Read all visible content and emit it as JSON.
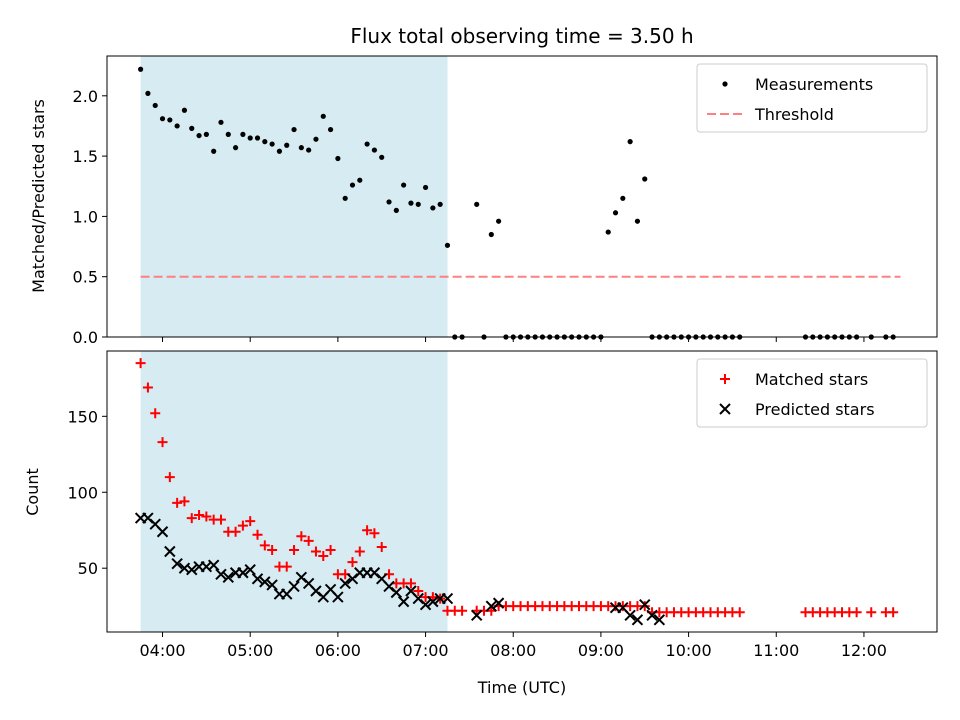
{
  "chart_data": [
    {
      "type": "scatter",
      "title": "Flux total observing time = 3.50 h",
      "xlabel": "",
      "ylabel": "Matched/Predicted stars",
      "xlim": [
        "03:22",
        "12:50"
      ],
      "ylim": [
        0,
        2.33
      ],
      "yticks": [
        0.0,
        0.5,
        1.0,
        1.5,
        2.0
      ],
      "ytick_labels": [
        "0.0",
        "0.5",
        "1.0",
        "1.5",
        "2.0"
      ],
      "grid": false,
      "legend_position": "top-right",
      "shaded_interval": {
        "start": "03:45",
        "end": "07:15",
        "color": "#add8e6"
      },
      "series": [
        {
          "name": "Measurements",
          "marker": "dot",
          "color": "#000000",
          "x": [
            "03:45",
            "03:50",
            "03:55",
            "04:00",
            "04:05",
            "04:10",
            "04:15",
            "04:20",
            "04:25",
            "04:30",
            "04:35",
            "04:40",
            "04:45",
            "04:50",
            "04:55",
            "05:00",
            "05:05",
            "05:10",
            "05:15",
            "05:20",
            "05:25",
            "05:30",
            "05:35",
            "05:40",
            "05:45",
            "05:50",
            "05:55",
            "06:00",
            "06:05",
            "06:10",
            "06:15",
            "06:20",
            "06:25",
            "06:30",
            "06:35",
            "06:40",
            "06:45",
            "06:50",
            "06:55",
            "07:00",
            "07:05",
            "07:10",
            "07:15",
            "07:20",
            "07:25",
            "07:35",
            "07:40",
            "07:45",
            "07:50",
            "07:55",
            "08:00",
            "08:05",
            "08:10",
            "08:15",
            "08:20",
            "08:25",
            "08:30",
            "08:35",
            "08:40",
            "08:45",
            "08:50",
            "08:55",
            "09:00",
            "09:05",
            "09:10",
            "09:15",
            "09:20",
            "09:25",
            "09:30",
            "09:35",
            "09:40",
            "09:45",
            "09:50",
            "09:55",
            "10:00",
            "10:05",
            "10:10",
            "10:15",
            "10:20",
            "10:25",
            "10:30",
            "10:35",
            "11:20",
            "11:25",
            "11:30",
            "11:35",
            "11:40",
            "11:45",
            "11:50",
            "11:55",
            "12:05",
            "12:15",
            "12:20"
          ],
          "y": [
            2.22,
            2.02,
            1.92,
            1.81,
            1.8,
            1.75,
            1.88,
            1.73,
            1.67,
            1.68,
            1.54,
            1.78,
            1.68,
            1.57,
            1.68,
            1.65,
            1.65,
            1.62,
            1.6,
            1.54,
            1.59,
            1.72,
            1.57,
            1.55,
            1.64,
            1.83,
            1.72,
            1.48,
            1.15,
            1.26,
            1.3,
            1.6,
            1.55,
            1.49,
            1.12,
            1.05,
            1.26,
            1.11,
            1.1,
            1.24,
            1.07,
            1.1,
            0.76,
            0,
            0,
            1.1,
            0,
            0.85,
            0.96,
            0,
            0,
            0,
            0,
            0,
            0,
            0,
            0,
            0,
            0,
            0,
            0,
            0,
            0,
            0.87,
            1.03,
            1.15,
            1.62,
            0.96,
            1.31,
            0,
            0,
            0,
            0,
            0,
            0,
            0,
            0,
            0,
            0,
            0,
            0,
            0,
            0,
            0,
            0,
            0,
            0,
            0,
            0,
            0,
            0,
            0,
            0
          ]
        },
        {
          "name": "Threshold",
          "style": "dashed",
          "color": "#ff8080",
          "x": [
            "03:45",
            "12:25"
          ],
          "y": [
            0.5,
            0.5
          ]
        }
      ]
    },
    {
      "type": "scatter",
      "title": "",
      "xlabel": "Time (UTC)",
      "ylabel": "Count",
      "xlim": [
        "03:22",
        "12:50"
      ],
      "ylim": [
        8,
        193
      ],
      "xticks": [
        "04:00",
        "05:00",
        "06:00",
        "07:00",
        "08:00",
        "09:00",
        "10:00",
        "11:00",
        "12:00"
      ],
      "yticks": [
        50,
        100,
        150
      ],
      "ytick_labels": [
        "50",
        "100",
        "150"
      ],
      "grid": false,
      "legend_position": "top-right",
      "shaded_interval": {
        "start": "03:45",
        "end": "07:15",
        "color": "#add8e6"
      },
      "series": [
        {
          "name": "Matched stars",
          "marker": "plus",
          "color": "#ff0000",
          "x": [
            "03:45",
            "03:50",
            "03:55",
            "04:00",
            "04:05",
            "04:10",
            "04:15",
            "04:20",
            "04:25",
            "04:30",
            "04:35",
            "04:40",
            "04:45",
            "04:50",
            "04:55",
            "05:00",
            "05:05",
            "05:10",
            "05:15",
            "05:20",
            "05:25",
            "05:30",
            "05:35",
            "05:40",
            "05:45",
            "05:50",
            "05:55",
            "06:00",
            "06:05",
            "06:10",
            "06:15",
            "06:20",
            "06:25",
            "06:30",
            "06:35",
            "06:40",
            "06:45",
            "06:50",
            "06:55",
            "07:00",
            "07:05",
            "07:10",
            "07:15",
            "07:20",
            "07:25",
            "07:35",
            "07:40",
            "07:45",
            "07:50",
            "07:55",
            "08:00",
            "08:05",
            "08:10",
            "08:15",
            "08:20",
            "08:25",
            "08:30",
            "08:35",
            "08:40",
            "08:45",
            "08:50",
            "08:55",
            "09:00",
            "09:05",
            "09:10",
            "09:15",
            "09:20",
            "09:25",
            "09:30",
            "09:35",
            "09:40",
            "09:45",
            "09:50",
            "09:55",
            "10:00",
            "10:05",
            "10:10",
            "10:15",
            "10:20",
            "10:25",
            "10:30",
            "10:35",
            "11:20",
            "11:25",
            "11:30",
            "11:35",
            "11:40",
            "11:45",
            "11:50",
            "11:55",
            "12:05",
            "12:15",
            "12:20"
          ],
          "y": [
            185,
            169,
            152,
            133,
            110,
            93,
            94,
            83,
            85,
            84,
            82,
            82,
            74,
            74,
            78,
            81,
            72,
            65,
            62,
            51,
            51,
            62,
            71,
            68,
            61,
            58,
            62,
            46,
            46,
            54,
            61,
            75,
            73,
            64,
            46,
            40,
            40,
            40,
            35,
            31,
            31,
            30,
            22,
            22,
            22,
            22,
            22,
            22,
            25,
            25,
            25,
            25,
            25,
            25,
            25,
            25,
            25,
            25,
            25,
            25,
            25,
            25,
            25,
            25,
            25,
            25,
            25,
            25,
            25,
            21,
            21,
            21,
            21,
            21,
            21,
            21,
            21,
            21,
            21,
            21,
            21,
            21,
            21,
            21,
            21,
            21,
            21,
            21,
            21,
            21,
            21,
            21,
            21
          ]
        },
        {
          "name": "Predicted stars",
          "marker": "x",
          "color": "#000000",
          "x": [
            "03:45",
            "03:50",
            "03:55",
            "04:00",
            "04:05",
            "04:10",
            "04:15",
            "04:20",
            "04:25",
            "04:30",
            "04:35",
            "04:40",
            "04:45",
            "04:50",
            "04:55",
            "05:00",
            "05:05",
            "05:10",
            "05:15",
            "05:20",
            "05:25",
            "05:30",
            "05:35",
            "05:40",
            "05:45",
            "05:50",
            "05:55",
            "06:00",
            "06:05",
            "06:10",
            "06:15",
            "06:20",
            "06:25",
            "06:30",
            "06:35",
            "06:40",
            "06:45",
            "06:50",
            "06:55",
            "07:00",
            "07:05",
            "07:10",
            "07:15",
            "07:35",
            "07:45",
            "07:50",
            "09:10",
            "09:15",
            "09:20",
            "09:25",
            "09:30",
            "09:35",
            "09:40"
          ],
          "y": [
            83,
            83,
            79,
            74,
            61,
            53,
            50,
            49,
            51,
            51,
            52,
            46,
            44,
            47,
            47,
            49,
            43,
            41,
            39,
            33,
            33,
            38,
            44,
            40,
            35,
            31,
            36,
            31,
            40,
            43,
            47,
            47,
            47,
            43,
            38,
            34,
            28,
            35,
            30,
            26,
            28,
            30,
            30,
            19,
            25,
            27,
            24,
            24,
            19,
            16,
            26,
            19,
            16
          ]
        }
      ]
    }
  ]
}
